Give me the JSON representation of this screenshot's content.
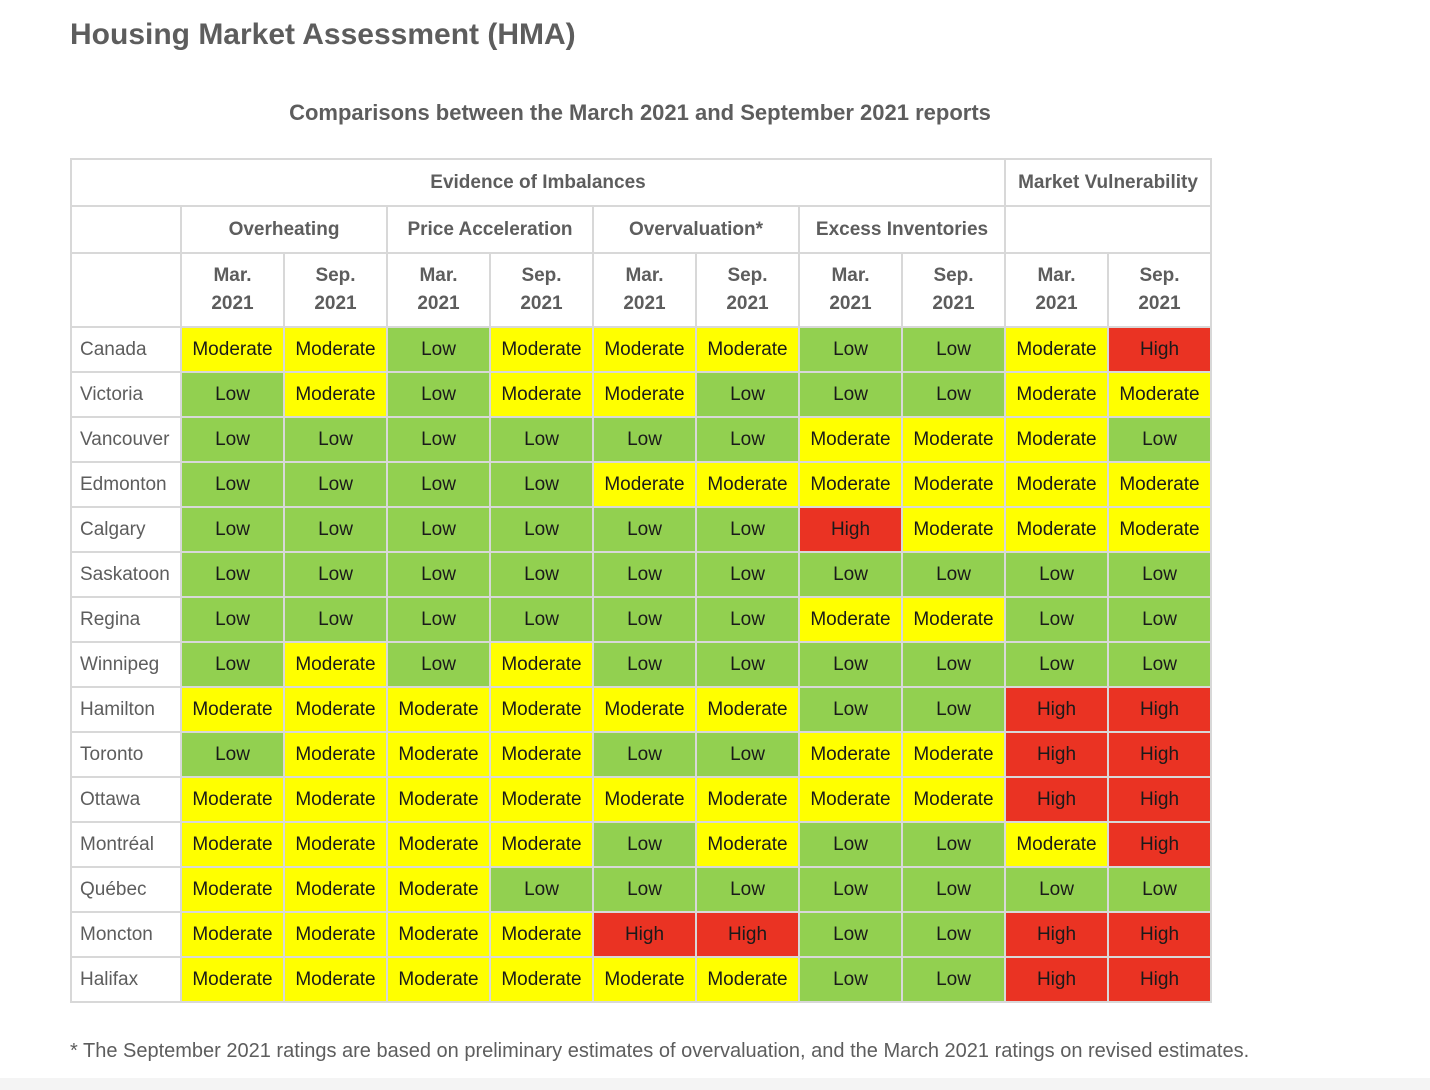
{
  "title": "Housing Market Assessment (HMA)",
  "subtitle": "Comparisons between the March 2021 and September 2021 reports",
  "table": {
    "evidence_header": "Evidence of Imbalances",
    "vulnerability_header": "Market Vulnerability",
    "groups": [
      "Overheating",
      "Price Acceleration",
      "Overvaluation*",
      "Excess Inventories"
    ],
    "periods": [
      {
        "month": "Mar.",
        "year": "2021"
      },
      {
        "month": "Sep.",
        "year": "2021"
      },
      {
        "month": "Mar.",
        "year": "2021"
      },
      {
        "month": "Sep.",
        "year": "2021"
      },
      {
        "month": "Mar.",
        "year": "2021"
      },
      {
        "month": "Sep.",
        "year": "2021"
      },
      {
        "month": "Mar.",
        "year": "2021"
      },
      {
        "month": "Sep.",
        "year": "2021"
      },
      {
        "month": "Mar.",
        "year": "2021"
      },
      {
        "month": "Sep.",
        "year": "2021"
      }
    ],
    "level_colors": {
      "Low": "#92d050",
      "Moderate": "#ffff00",
      "High": "#ea3323"
    },
    "rows": [
      {
        "city": "Canada",
        "ratings": [
          "Moderate",
          "Moderate",
          "Low",
          "Moderate",
          "Moderate",
          "Moderate",
          "Low",
          "Low",
          "Moderate",
          "High"
        ]
      },
      {
        "city": "Victoria",
        "ratings": [
          "Low",
          "Moderate",
          "Low",
          "Moderate",
          "Moderate",
          "Low",
          "Low",
          "Low",
          "Moderate",
          "Moderate"
        ]
      },
      {
        "city": "Vancouver",
        "ratings": [
          "Low",
          "Low",
          "Low",
          "Low",
          "Low",
          "Low",
          "Moderate",
          "Moderate",
          "Moderate",
          "Low"
        ]
      },
      {
        "city": "Edmonton",
        "ratings": [
          "Low",
          "Low",
          "Low",
          "Low",
          "Moderate",
          "Moderate",
          "Moderate",
          "Moderate",
          "Moderate",
          "Moderate"
        ]
      },
      {
        "city": "Calgary",
        "ratings": [
          "Low",
          "Low",
          "Low",
          "Low",
          "Low",
          "Low",
          "High",
          "Moderate",
          "Moderate",
          "Moderate"
        ]
      },
      {
        "city": "Saskatoon",
        "ratings": [
          "Low",
          "Low",
          "Low",
          "Low",
          "Low",
          "Low",
          "Low",
          "Low",
          "Low",
          "Low"
        ]
      },
      {
        "city": "Regina",
        "ratings": [
          "Low",
          "Low",
          "Low",
          "Low",
          "Low",
          "Low",
          "Moderate",
          "Moderate",
          "Low",
          "Low"
        ]
      },
      {
        "city": "Winnipeg",
        "ratings": [
          "Low",
          "Moderate",
          "Low",
          "Moderate",
          "Low",
          "Low",
          "Low",
          "Low",
          "Low",
          "Low"
        ]
      },
      {
        "city": "Hamilton",
        "ratings": [
          "Moderate",
          "Moderate",
          "Moderate",
          "Moderate",
          "Moderate",
          "Moderate",
          "Low",
          "Low",
          "High",
          "High"
        ]
      },
      {
        "city": "Toronto",
        "ratings": [
          "Low",
          "Moderate",
          "Moderate",
          "Moderate",
          "Low",
          "Low",
          "Moderate",
          "Moderate",
          "High",
          "High"
        ]
      },
      {
        "city": "Ottawa",
        "ratings": [
          "Moderate",
          "Moderate",
          "Moderate",
          "Moderate",
          "Moderate",
          "Moderate",
          "Moderate",
          "Moderate",
          "High",
          "High"
        ]
      },
      {
        "city": "Montréal",
        "ratings": [
          "Moderate",
          "Moderate",
          "Moderate",
          "Moderate",
          "Low",
          "Moderate",
          "Low",
          "Low",
          "Moderate",
          "High"
        ]
      },
      {
        "city": "Québec",
        "ratings": [
          "Moderate",
          "Moderate",
          "Moderate",
          "Low",
          "Low",
          "Low",
          "Low",
          "Low",
          "Low",
          "Low"
        ]
      },
      {
        "city": "Moncton",
        "ratings": [
          "Moderate",
          "Moderate",
          "Moderate",
          "Moderate",
          "High",
          "High",
          "Low",
          "Low",
          "High",
          "High"
        ]
      },
      {
        "city": "Halifax",
        "ratings": [
          "Moderate",
          "Moderate",
          "Moderate",
          "Moderate",
          "Moderate",
          "Moderate",
          "Low",
          "Low",
          "High",
          "High"
        ]
      }
    ]
  },
  "footnote": "* The September 2021 ratings are based on preliminary estimates of overvaluation, and the March 2021 ratings on revised estimates."
}
